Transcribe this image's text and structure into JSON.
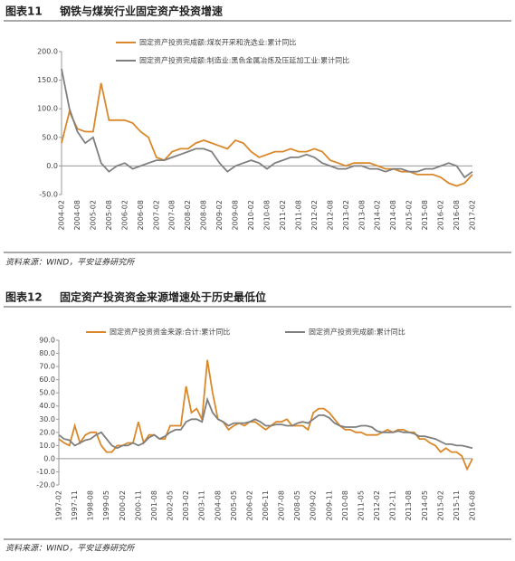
{
  "chart_data": [
    {
      "type": "line",
      "label": "图表11",
      "title": "钢铁与煤炭行业固定资产投资增速",
      "source": "资料来源：WIND，平安证券研究所",
      "categories": [
        "2004-02",
        null,
        "2004-08",
        null,
        "2005-02",
        null,
        "2005-08",
        null,
        "2006-02",
        null,
        "2006-08",
        null,
        "2007-02",
        null,
        "2007-08",
        null,
        "2008-02",
        null,
        "2008-08",
        null,
        "2009-02",
        null,
        "2009-08",
        null,
        "2010-02",
        null,
        "2010-08",
        null,
        "2011-02",
        null,
        "2011-08",
        null,
        "2012-02",
        null,
        "2012-08",
        null,
        "2013-02",
        null,
        "2013-08",
        null,
        "2014-02",
        null,
        "2014-08",
        null,
        "2015-02",
        null,
        "2015-08",
        null,
        "2016-02",
        null,
        "2016-08",
        null,
        "2017-02"
      ],
      "series": [
        {
          "name": "固定资产投资完成额:煤炭开采和洗选业:累计同比",
          "color": "#d9892b",
          "values": [
            40,
            95,
            65,
            60,
            60,
            145,
            80,
            80,
            80,
            75,
            60,
            50,
            15,
            10,
            25,
            30,
            30,
            40,
            45,
            40,
            35,
            30,
            45,
            40,
            25,
            15,
            20,
            25,
            25,
            30,
            25,
            25,
            30,
            25,
            10,
            5,
            0,
            5,
            5,
            5,
            0,
            -5,
            -5,
            -10,
            -10,
            -15,
            -15,
            -15,
            -20,
            -30,
            -35,
            -30,
            -15
          ]
        },
        {
          "name": "固定资产投资完成额:制造业:黑色金属冶炼及压延加工业:累计同比",
          "color": "#7f7f7f",
          "values": [
            170,
            100,
            60,
            40,
            50,
            5,
            -10,
            0,
            5,
            -5,
            0,
            5,
            10,
            10,
            15,
            20,
            25,
            30,
            30,
            25,
            5,
            -10,
            0,
            5,
            10,
            5,
            -5,
            5,
            10,
            15,
            15,
            20,
            15,
            5,
            0,
            -5,
            -5,
            0,
            0,
            -5,
            -5,
            -10,
            -5,
            -5,
            -10,
            -10,
            -5,
            -5,
            0,
            5,
            0,
            -20,
            -10
          ]
        }
      ],
      "ylim": [
        -50,
        200
      ],
      "yticks": [
        {
          "value": -50,
          "label": "-50.0"
        },
        {
          "value": 0,
          "label": "0.0"
        },
        {
          "value": 50,
          "label": "50.0"
        },
        {
          "value": 100,
          "label": "100.0"
        },
        {
          "value": 150,
          "label": "150.0"
        },
        {
          "value": 200,
          "label": "200.0"
        }
      ]
    },
    {
      "type": "line",
      "label": "图表12",
      "title": "固定资产投资资金来源增速处于历史最低位",
      "source": "资料来源：WIND，平安证券研究所",
      "categories": [
        "1997-02",
        null,
        null,
        "1997-11",
        null,
        null,
        "1998-08",
        null,
        null,
        "1999-05",
        null,
        null,
        "2000-02",
        null,
        null,
        "2000-11",
        null,
        null,
        "2001-08",
        null,
        null,
        "2002-05",
        null,
        null,
        "2003-02",
        null,
        null,
        "2003-11",
        null,
        null,
        "2004-08",
        null,
        null,
        "2005-05",
        null,
        null,
        "2006-02",
        null,
        null,
        "2006-11",
        null,
        null,
        "2007-08",
        null,
        null,
        "2008-05",
        null,
        null,
        "2009-02",
        null,
        null,
        "2009-11",
        null,
        null,
        "2010-08",
        null,
        null,
        "2011-05",
        null,
        null,
        "2012-02",
        null,
        null,
        "2012-11",
        null,
        null,
        "2013-08",
        null,
        null,
        "2014-05",
        null,
        null,
        "2015-02",
        null,
        null,
        "2015-11",
        null,
        null,
        "2016-08"
      ],
      "series": [
        {
          "name": "固定资产投资资金来源:合计:累计同比",
          "color": "#d9892b",
          "values": [
            15,
            12,
            10,
            25,
            12,
            18,
            20,
            20,
            10,
            5,
            5,
            10,
            10,
            12,
            12,
            28,
            12,
            18,
            18,
            15,
            15,
            25,
            25,
            25,
            55,
            35,
            38,
            30,
            75,
            50,
            30,
            28,
            22,
            25,
            27,
            25,
            28,
            28,
            25,
            22,
            25,
            28,
            28,
            30,
            25,
            25,
            25,
            22,
            35,
            38,
            38,
            35,
            30,
            25,
            22,
            22,
            20,
            20,
            18,
            18,
            18,
            20,
            22,
            20,
            22,
            22,
            20,
            20,
            15,
            15,
            12,
            10,
            5,
            8,
            5,
            5,
            2,
            -8,
            0
          ]
        },
        {
          "name": "固定资产投资完成额:累计同比",
          "color": "#7f7f7f",
          "values": [
            18,
            15,
            14,
            10,
            12,
            14,
            15,
            18,
            20,
            15,
            10,
            8,
            10,
            10,
            12,
            10,
            12,
            16,
            18,
            15,
            17,
            20,
            22,
            22,
            28,
            30,
            30,
            28,
            45,
            35,
            30,
            28,
            25,
            27,
            27,
            27,
            28,
            30,
            28,
            25,
            25,
            26,
            26,
            25,
            25,
            27,
            28,
            27,
            30,
            33,
            33,
            31,
            27,
            25,
            24,
            24,
            24,
            25,
            25,
            24,
            21,
            20,
            20,
            20,
            21,
            20,
            20,
            19,
            17,
            17,
            16,
            15,
            13,
            11,
            11,
            10,
            10,
            9,
            8
          ]
        }
      ],
      "ylim": [
        -20,
        90
      ],
      "yticks": [
        {
          "value": -20,
          "label": "-20.0"
        },
        {
          "value": -10,
          "label": "-10.0"
        },
        {
          "value": 0,
          "label": "0.0"
        },
        {
          "value": 10,
          "label": "10.0"
        },
        {
          "value": 20,
          "label": "20.0"
        },
        {
          "value": 30,
          "label": "30.0"
        },
        {
          "value": 40,
          "label": "40.0"
        },
        {
          "value": 50,
          "label": "50.0"
        },
        {
          "value": 60,
          "label": "60.0"
        },
        {
          "value": 70,
          "label": "70.0"
        },
        {
          "value": 80,
          "label": "80.0"
        },
        {
          "value": 90,
          "label": "90.0"
        }
      ]
    }
  ]
}
